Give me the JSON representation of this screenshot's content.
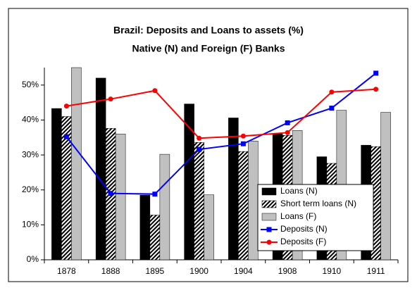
{
  "chart_data": {
    "type": "bar_line",
    "title": "Brazil: Deposits and Loans to assets (%)",
    "subtitle": "Native (N) and Foreign (F) Banks",
    "categories": [
      "1878",
      "1888",
      "1895",
      "1900",
      "1904",
      "1908",
      "1910",
      "1911"
    ],
    "series": [
      {
        "name": "Loans (N)",
        "type": "bar",
        "color": "#000000",
        "values": [
          43.3,
          52,
          18.5,
          44.6,
          40.6,
          36,
          29.5,
          32.8
        ]
      },
      {
        "name": "Short term loans (N)",
        "type": "bar",
        "color": "#000000",
        "pattern": "hatch",
        "values": [
          41,
          37.6,
          12.8,
          33.6,
          31,
          35.6,
          27.6,
          32.4
        ]
      },
      {
        "name": "Loans (F)",
        "type": "bar",
        "color": "#c0c0c0",
        "values": [
          55,
          36,
          30.2,
          18.6,
          34,
          37,
          42.8,
          42.2
        ]
      },
      {
        "name": "Deposits (N)",
        "type": "line",
        "color": "#0000ff",
        "marker": "square",
        "values": [
          35.2,
          19,
          18.8,
          31.6,
          33.2,
          39.2,
          43.4,
          53.4
        ]
      },
      {
        "name": "Deposits (F)",
        "type": "line",
        "color": "#ff0000",
        "marker": "circle",
        "values": [
          44,
          46,
          48.4,
          34.8,
          35.4,
          36.4,
          48,
          48.8
        ]
      }
    ],
    "ylim": [
      0,
      55
    ],
    "yticks": [
      {
        "value": 0,
        "label": "0%"
      },
      {
        "value": 10,
        "label": "10%"
      },
      {
        "value": 20,
        "label": "20%"
      },
      {
        "value": 30,
        "label": "30%"
      },
      {
        "value": 40,
        "label": "40%"
      },
      {
        "value": 50,
        "label": "50%"
      }
    ],
    "grid": false,
    "legend": "lower right"
  }
}
